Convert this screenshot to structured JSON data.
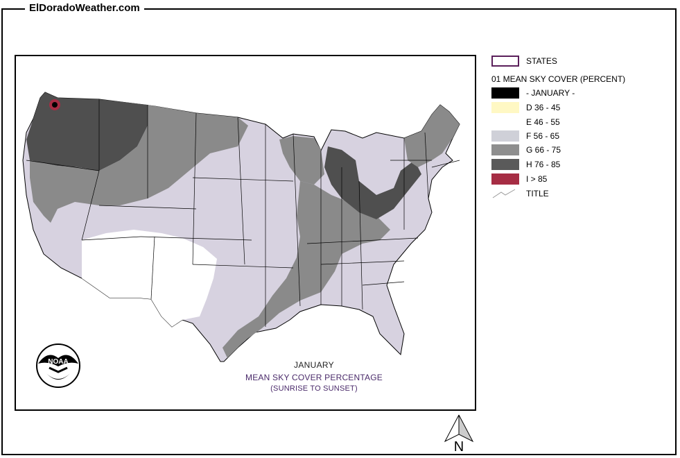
{
  "site": {
    "title": "ElDoradoWeather.com"
  },
  "legend": {
    "states_label": "STATES",
    "header": "01 MEAN SKY COVER (PERCENT)",
    "items": [
      {
        "label": "- JANUARY -",
        "color": "#000000"
      },
      {
        "label": "D 36 - 45",
        "color": "#fff8c4"
      },
      {
        "label": "E 46 - 55",
        "color": "#ffffff"
      },
      {
        "label": "F 56 - 65",
        "color": "#cfd0d8"
      },
      {
        "label": "G 66 - 75",
        "color": "#8e8e8e"
      },
      {
        "label": "H 76 - 85",
        "color": "#5a5a5a"
      },
      {
        "label": "I > 85",
        "color": "#a62d44"
      }
    ],
    "title_label": "TITLE",
    "states_border_color": "#5a1f5a"
  },
  "map": {
    "caption_line1": "JANUARY",
    "caption_line2": "MEAN SKY COVER PERCENTAGE",
    "caption_line3": "(SUNRISE TO SUNSET)",
    "logo_text": "NOAA"
  },
  "north_arrow": {
    "label": "N"
  }
}
